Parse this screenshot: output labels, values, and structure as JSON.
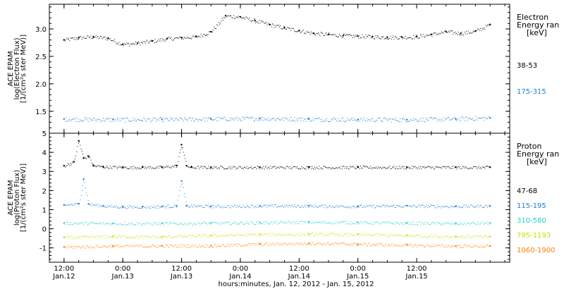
{
  "chart_data": [
    {
      "type": "scatter",
      "panel": "electron",
      "ylabel": [
        "ACE EPAM",
        "log(Electron Flux)",
        "[1/(cm²s ster MeV)]"
      ],
      "yticks": [
        "1.5",
        "2.0",
        "2.5",
        "3.0"
      ],
      "ylim": [
        1.1,
        3.45
      ],
      "legend_title": [
        "Electron",
        "Energy ran",
        "[keV]"
      ],
      "series": [
        {
          "name": "38-53",
          "color": "#000000",
          "x": [
            0,
            3,
            6,
            9,
            12,
            15,
            18,
            21,
            24,
            27,
            30,
            33,
            36,
            39,
            42,
            45,
            48,
            51,
            54,
            57,
            60,
            63,
            66,
            69,
            72,
            75,
            78,
            81,
            84,
            87
          ],
          "y": [
            2.8,
            2.84,
            2.86,
            2.83,
            2.72,
            2.74,
            2.78,
            2.82,
            2.84,
            2.86,
            2.95,
            3.24,
            3.22,
            3.15,
            3.08,
            3.02,
            2.97,
            2.92,
            2.9,
            2.88,
            2.87,
            2.86,
            2.85,
            2.85,
            2.86,
            2.9,
            2.95,
            2.92,
            2.96,
            3.08
          ]
        },
        {
          "name": "175-315",
          "color": "#1f7fd0",
          "x": [
            0,
            10,
            20,
            30,
            40,
            50,
            60,
            70,
            80,
            87
          ],
          "y": [
            1.36,
            1.35,
            1.35,
            1.36,
            1.37,
            1.36,
            1.35,
            1.35,
            1.36,
            1.38
          ]
        }
      ]
    },
    {
      "type": "scatter",
      "panel": "proton",
      "ylabel": [
        "ACE EPAM",
        "log(Proton Flux)",
        "[1/(cm²s ster MeV)]"
      ],
      "yticks": [
        "-1",
        "0",
        "1",
        "2",
        "3",
        "4",
        "5"
      ],
      "ylim": [
        -1.75,
        5
      ],
      "legend_title": [
        "Proton",
        "Energy ran",
        "[keV]"
      ],
      "series": [
        {
          "name": "47-68",
          "color": "#000000",
          "x": [
            0,
            2,
            3,
            4,
            5,
            6,
            8,
            12,
            16,
            20,
            23,
            24,
            25,
            26,
            30,
            40,
            50,
            60,
            70,
            80,
            87
          ],
          "y": [
            3.3,
            3.5,
            4.6,
            3.7,
            3.8,
            3.3,
            3.25,
            3.22,
            3.22,
            3.22,
            3.3,
            4.4,
            3.3,
            3.22,
            3.22,
            3.22,
            3.22,
            3.22,
            3.22,
            3.22,
            3.22
          ]
        },
        {
          "name": "115-195",
          "color": "#1f7fd0",
          "x": [
            0,
            3,
            4,
            5,
            8,
            12,
            16,
            20,
            23,
            24,
            25,
            30,
            40,
            50,
            60,
            70,
            80,
            87
          ],
          "y": [
            1.25,
            1.3,
            2.6,
            1.3,
            1.2,
            1.15,
            1.15,
            1.17,
            1.2,
            2.5,
            1.2,
            1.18,
            1.2,
            1.2,
            1.18,
            1.2,
            1.18,
            1.2
          ]
        },
        {
          "name": "310-580",
          "color": "#22d3c8",
          "x": [
            0,
            10,
            20,
            30,
            40,
            50,
            60,
            70,
            80,
            87
          ],
          "y": [
            0.3,
            0.28,
            0.28,
            0.3,
            0.32,
            0.35,
            0.33,
            0.3,
            0.28,
            0.3
          ]
        },
        {
          "name": "795-1193",
          "color": "#c8e000",
          "x": [
            0,
            10,
            20,
            30,
            40,
            50,
            60,
            70,
            80,
            87
          ],
          "y": [
            -0.45,
            -0.4,
            -0.42,
            -0.35,
            -0.3,
            -0.28,
            -0.3,
            -0.35,
            -0.4,
            -0.4
          ]
        },
        {
          "name": "1060-1900",
          "color": "#ff7f00",
          "x": [
            0,
            10,
            20,
            30,
            40,
            50,
            60,
            70,
            80,
            87
          ],
          "y": [
            -0.95,
            -0.9,
            -0.9,
            -0.88,
            -0.8,
            -0.75,
            -0.8,
            -0.85,
            -0.9,
            -0.9
          ]
        }
      ]
    }
  ],
  "xaxis": {
    "xlabel": "hours:minutes, Jan. 12, 2012 - Jan. 15, 2012",
    "xlim": [
      -3,
      91
    ],
    "ticks": [
      {
        "x": 0,
        "time": "12:00",
        "date": "Jan.12"
      },
      {
        "x": 12,
        "time": "0:00",
        "date": "Jan.13"
      },
      {
        "x": 24,
        "time": "12:00",
        "date": "Jan.13"
      },
      {
        "x": 36,
        "time": "0:00",
        "date": "Jan.14"
      },
      {
        "x": 48,
        "time": "12:00",
        "date": "Jan.14"
      },
      {
        "x": 60,
        "time": "0:00",
        "date": "Jan.15"
      },
      {
        "x": 72,
        "time": "12:00",
        "date": "Jan.15"
      }
    ]
  }
}
